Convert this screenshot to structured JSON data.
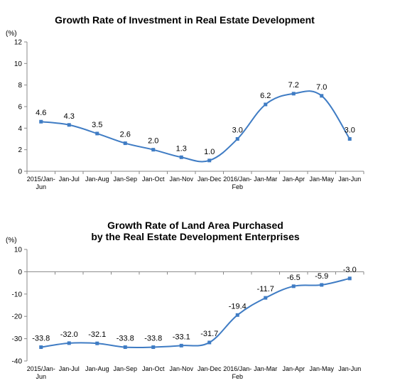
{
  "chart_data": [
    {
      "type": "line",
      "title": "Growth Rate of Investment in Real Estate Development",
      "unit_label": "(%)",
      "ylim": [
        0,
        12
      ],
      "yticks": [
        0,
        2,
        4,
        6,
        8,
        10,
        12
      ],
      "grid": false,
      "categories": [
        "2015/Jan-Jun",
        "Jan-Jul",
        "Jan-Aug",
        "Jan-Sep",
        "Jan-Oct",
        "Jan-Nov",
        "Jan-Dec",
        "2016/Jan-Feb",
        "Jan-Mar",
        "Jan-Apr",
        "Jan-May",
        "Jan-Jun"
      ],
      "series": [
        {
          "values": [
            4.6,
            4.3,
            3.5,
            2.6,
            2.0,
            1.3,
            1.0,
            3.0,
            6.2,
            7.2,
            7.0,
            3.0
          ],
          "labels": [
            "4.6",
            "4.3",
            "3.5",
            "2.6",
            "2.0",
            "1.3",
            "1.0",
            "3.0",
            "6.2",
            "7.2",
            "7.0",
            "3.0"
          ],
          "color": "#3f7cc4"
        }
      ]
    },
    {
      "type": "line",
      "title": "Growth Rate of Land Area Purchased\nby the Real Estate Development Enterprises",
      "unit_label": "(%)",
      "ylim": [
        -40,
        10
      ],
      "yticks": [
        -40,
        -30,
        -20,
        -10,
        0,
        10
      ],
      "grid": false,
      "categories": [
        "2015/Jan-Jun",
        "Jan-Jul",
        "Jan-Aug",
        "Jan-Sep",
        "Jan-Oct",
        "Jan-Nov",
        "Jan-Dec",
        "2016/Jan-Feb",
        "Jan-Mar",
        "Jan-Apr",
        "Jan-May",
        "Jan-Jun"
      ],
      "series": [
        {
          "values": [
            -33.8,
            -32.0,
            -32.1,
            -33.8,
            -33.8,
            -33.1,
            -31.7,
            -19.4,
            -11.7,
            -6.5,
            -5.9,
            -3.0
          ],
          "labels": [
            "-33.8",
            "-32.0",
            "-32.1",
            "-33.8",
            "-33.8",
            "-33.1",
            "-31.7",
            "-19.4",
            "-11.7",
            "-6.5",
            "-5.9",
            "-3.0"
          ],
          "color": "#3f7cc4"
        }
      ]
    }
  ]
}
